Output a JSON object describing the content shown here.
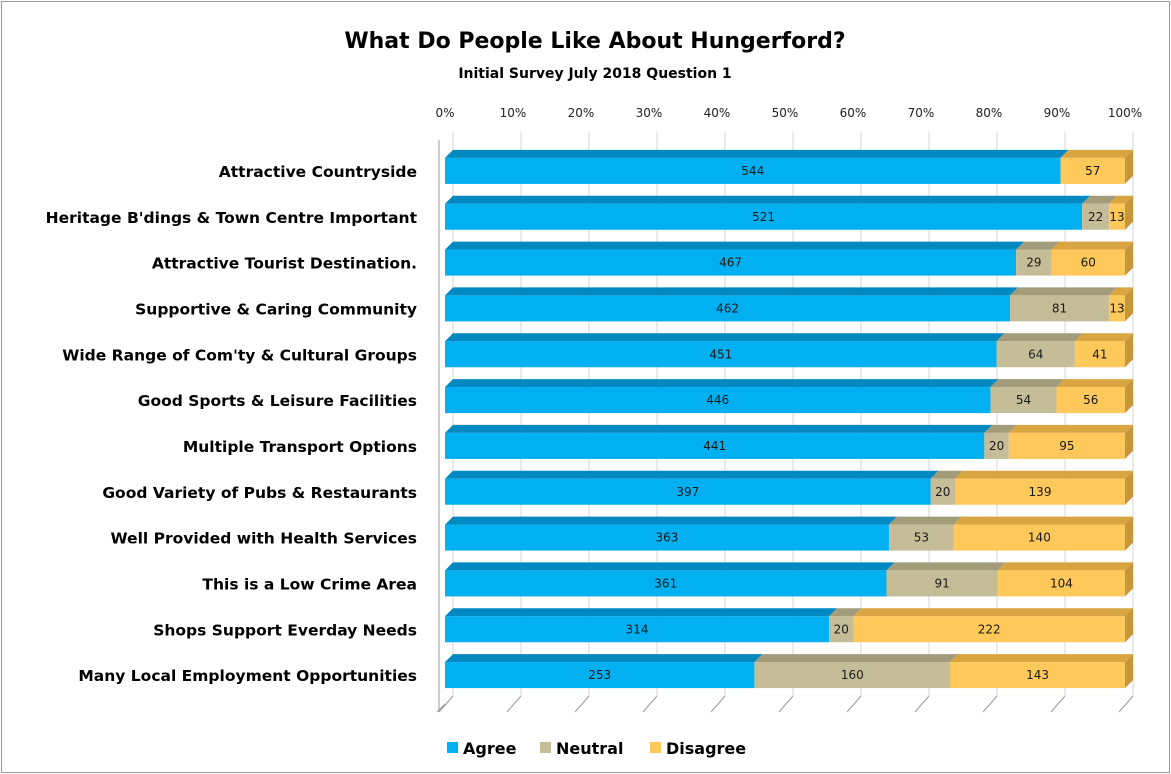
{
  "chart_data": {
    "type": "bar",
    "orientation": "horizontal",
    "stacked": "percent",
    "style": "3d",
    "title": "What Do People Like About Hungerford?",
    "subtitle": "Initial Survey July 2018 Question 1",
    "x_ticks": [
      "0%",
      "10%",
      "20%",
      "30%",
      "40%",
      "50%",
      "60%",
      "70%",
      "80%",
      "90%",
      "100%"
    ],
    "xlim": [
      0,
      100
    ],
    "legend_position": "bottom",
    "categories": [
      "Attractive Countryside",
      "Heritage B'dings & Town Centre Important",
      "Attractive Tourist Destination.",
      "Supportive & Caring Community",
      "Wide Range of Com'ty & Cultural Groups",
      "Good Sports & Leisure Facilities",
      "Multiple Transport Options",
      "Good Variety of Pubs & Restaurants",
      "Well Provided with Health Services",
      "This is a Low Crime Area",
      "Shops Support Everday Needs",
      "Many Local Employment Opportunities"
    ],
    "series": [
      {
        "name": "Agree",
        "color": "#00b0f0",
        "top": "#0088c0",
        "side": "#006a94",
        "values": [
          544,
          521,
          467,
          462,
          451,
          446,
          441,
          397,
          363,
          361,
          314,
          253
        ]
      },
      {
        "name": "Neutral",
        "color": "#c4bd97",
        "top": "#a39c7a",
        "side": "#8c8566",
        "values": [
          0,
          22,
          29,
          81,
          64,
          54,
          20,
          20,
          53,
          91,
          20,
          160
        ]
      },
      {
        "name": "Disagree",
        "color": "#ffc85a",
        "top": "#d9a540",
        "side": "#c8963a",
        "values": [
          57,
          13,
          60,
          13,
          41,
          56,
          95,
          139,
          140,
          104,
          222,
          143
        ]
      }
    ],
    "data_labels": [
      [
        "544",
        "",
        "57"
      ],
      [
        "521",
        "22",
        "13"
      ],
      [
        "467",
        "29",
        "60"
      ],
      [
        "462",
        "81",
        "13"
      ],
      [
        "451",
        "64",
        "41"
      ],
      [
        "446",
        "54",
        "56"
      ],
      [
        "441",
        "20",
        "95"
      ],
      [
        "397",
        "20",
        "139"
      ],
      [
        "363",
        "53",
        "140"
      ],
      [
        "361",
        "91",
        "104"
      ],
      [
        "314",
        "20",
        "222"
      ],
      [
        "253",
        "160",
        "143"
      ]
    ]
  }
}
